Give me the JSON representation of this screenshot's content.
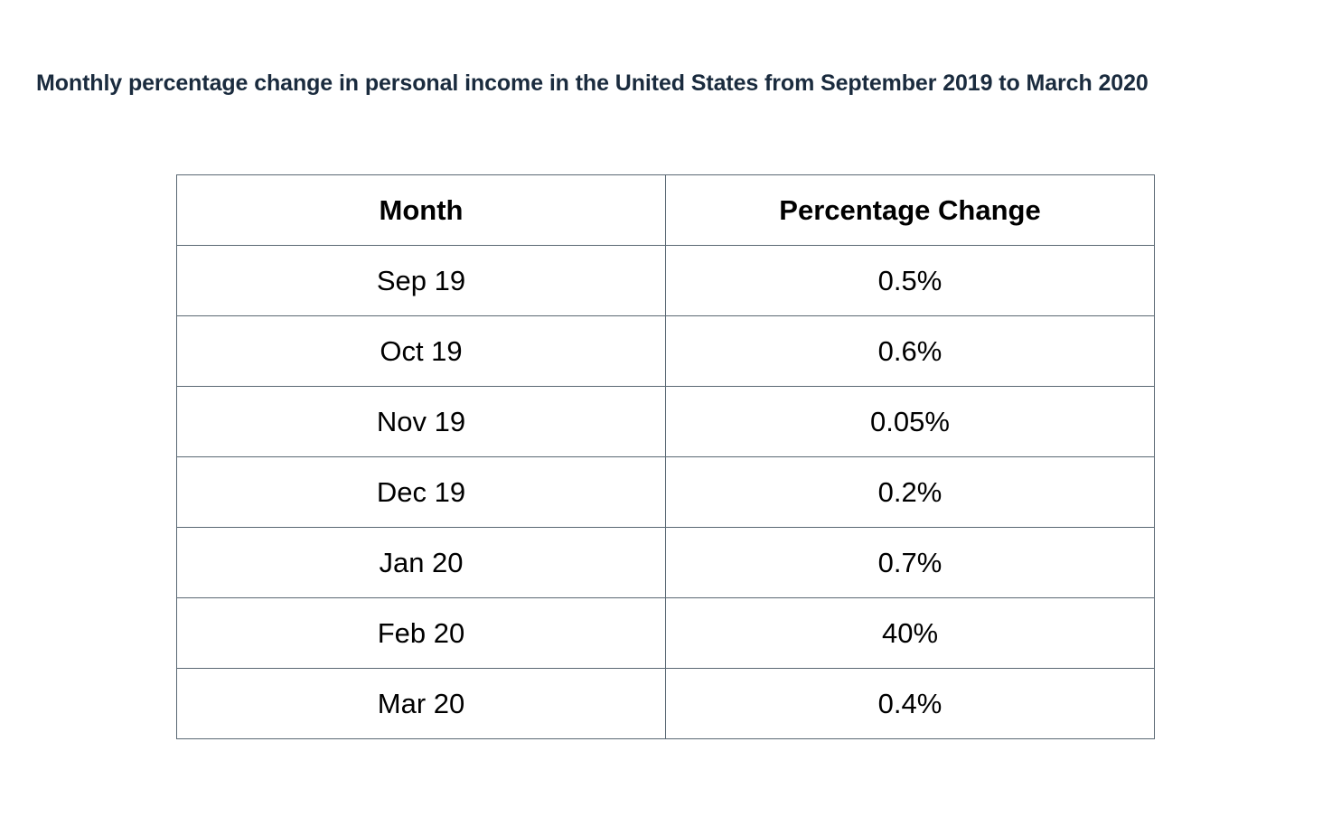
{
  "chart_data": {
    "type": "table",
    "title": "Monthly percentage change in personal income in the United States from September 2019 to March 2020",
    "columns": [
      "Month",
      "Percentage Change"
    ],
    "rows": [
      [
        "Sep 19",
        "0.5%"
      ],
      [
        "Oct 19",
        "0.6%"
      ],
      [
        "Nov 19",
        "0.05%"
      ],
      [
        "Dec 19",
        "0.2%"
      ],
      [
        "Jan 20",
        "0.7%"
      ],
      [
        "Feb 20",
        "40%"
      ],
      [
        "Mar 20",
        "0.4%"
      ]
    ],
    "title_color": "#1a2b3e",
    "border_color": "#5a6873"
  }
}
